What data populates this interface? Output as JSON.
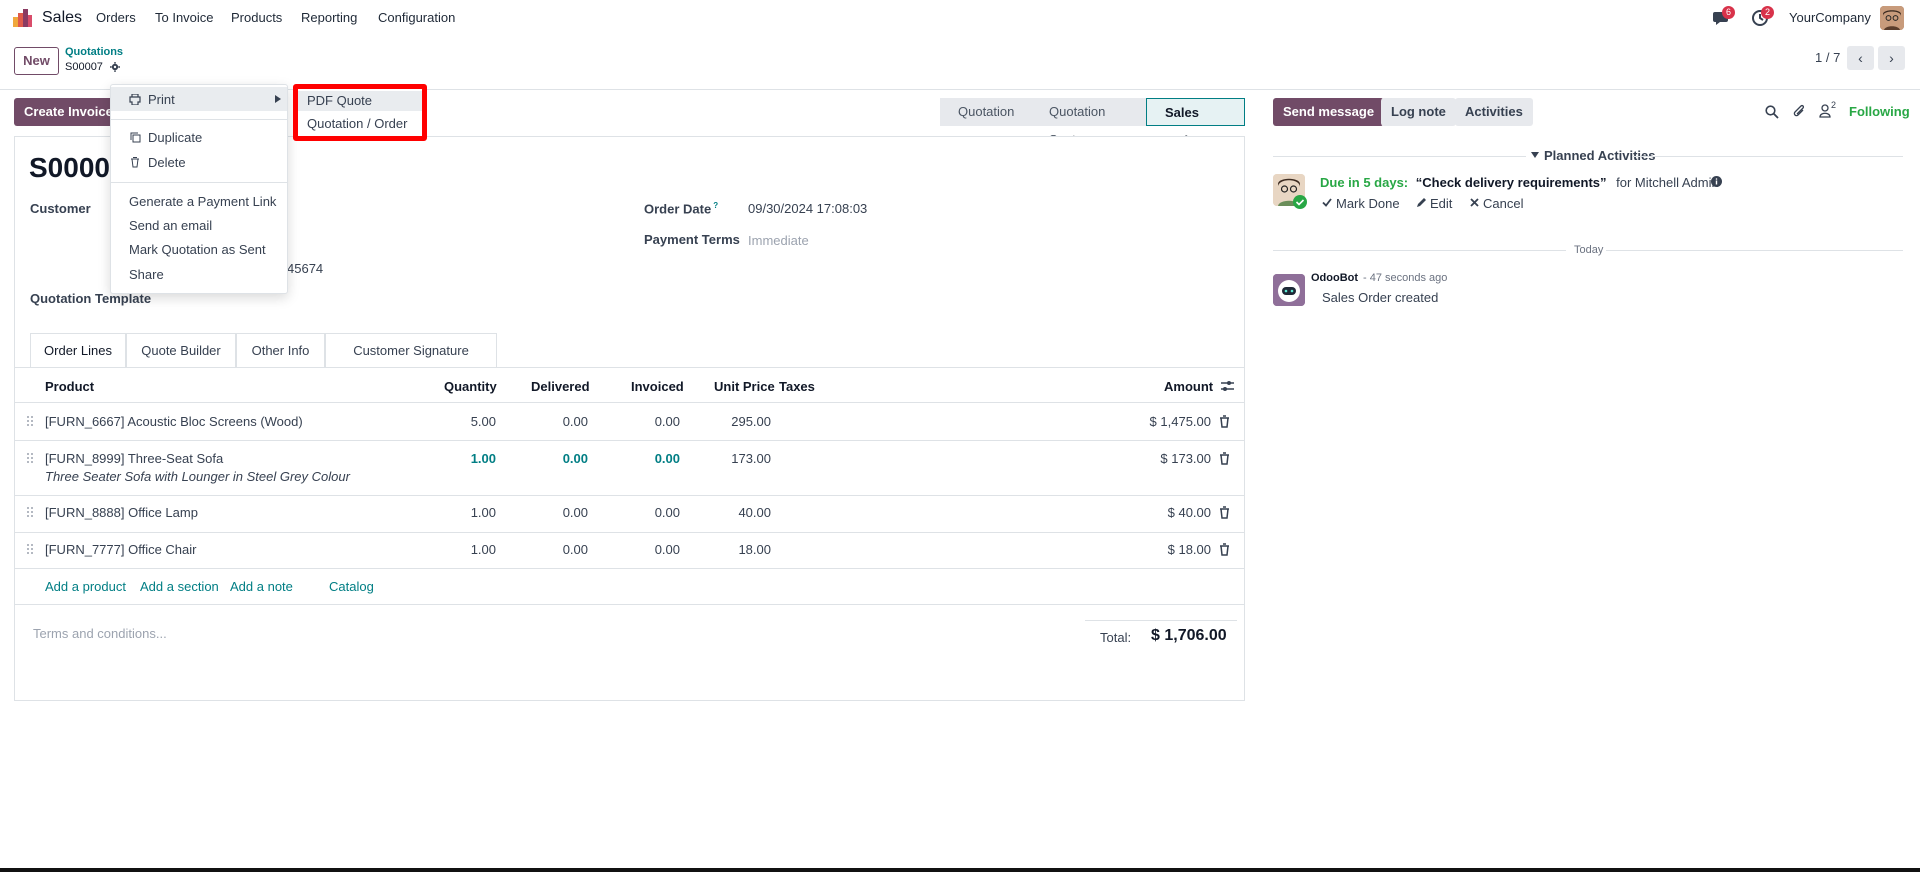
{
  "nav": {
    "app_name": "Sales",
    "menus": [
      "Orders",
      "To Invoice",
      "Products",
      "Reporting",
      "Configuration"
    ],
    "messages_badge": "6",
    "activities_badge": "2",
    "company": "YourCompany"
  },
  "control": {
    "new_label": "New",
    "breadcrumb_parent": "Quotations",
    "breadcrumb_current": "S00007",
    "pager": "1 / 7",
    "prev": "‹",
    "next": "›"
  },
  "actions": {
    "create_invoice": "Create Invoice",
    "statuses": [
      "Quotation",
      "Quotation Sent",
      "Sales Order"
    ],
    "active_status": "Sales Order"
  },
  "form": {
    "title": "S0000",
    "customer_label": "Customer",
    "customer_phone_fragment": "45674",
    "quotation_template_label": "Quotation Template",
    "order_date_label": "Order Date",
    "order_date_help": "?",
    "order_date_value": "09/30/2024 17:08:03",
    "payment_terms_label": "Payment Terms",
    "payment_terms_placeholder": "Immediate"
  },
  "tabs": [
    "Order Lines",
    "Quote Builder",
    "Other Info",
    "Customer Signature"
  ],
  "table": {
    "headers": {
      "product": "Product",
      "quantity": "Quantity",
      "delivered": "Delivered",
      "invoiced": "Invoiced",
      "unit_price": "Unit Price",
      "taxes": "Taxes",
      "amount": "Amount"
    },
    "rows": [
      {
        "product": "[FURN_6667] Acoustic Bloc Screens (Wood)",
        "description": "",
        "quantity": "5.00",
        "delivered": "0.00",
        "invoiced": "0.00",
        "unit_price": "295.00",
        "amount": "$ 1,475.00"
      },
      {
        "product": "[FURN_8999] Three-Seat Sofa",
        "description": "Three Seater Sofa with Lounger in Steel Grey Colour",
        "quantity": "1.00",
        "delivered": "0.00",
        "invoiced": "0.00",
        "unit_price": "173.00",
        "amount": "$ 173.00"
      },
      {
        "product": "[FURN_8888] Office Lamp",
        "description": "",
        "quantity": "1.00",
        "delivered": "0.00",
        "invoiced": "0.00",
        "unit_price": "40.00",
        "amount": "$ 40.00"
      },
      {
        "product": "[FURN_7777] Office Chair",
        "description": "",
        "quantity": "1.00",
        "delivered": "0.00",
        "invoiced": "0.00",
        "unit_price": "18.00",
        "amount": "$ 18.00"
      }
    ],
    "add_product": "Add a product",
    "add_section": "Add a section",
    "add_note": "Add a note",
    "catalog": "Catalog",
    "terms_placeholder": "Terms and conditions...",
    "total_label": "Total:",
    "total_value": "$ 1,706.00"
  },
  "gear_menu": {
    "print": "Print",
    "duplicate": "Duplicate",
    "delete": "Delete",
    "payment_link": "Generate a Payment Link",
    "send_email": "Send an email",
    "mark_sent": "Mark Quotation as Sent",
    "share": "Share"
  },
  "print_submenu": {
    "pdf_quote": "PDF Quote",
    "quotation_order": "Quotation / Order"
  },
  "chatter": {
    "send_message": "Send message",
    "log_note": "Log note",
    "activities": "Activities",
    "followers_count": "2",
    "following": "Following",
    "planned_activities": "Planned Activities",
    "due_label": "Due in 5 days:",
    "activity_title": "“Check delivery requirements”",
    "activity_for": "for Mitchell Admin",
    "mark_done": "Mark Done",
    "edit": "Edit",
    "cancel": "Cancel",
    "today": "Today",
    "author": "OdooBot",
    "time": "- 47 seconds ago",
    "message": "Sales Order created"
  },
  "colors": {
    "brand": "#714b67",
    "link": "#017e84",
    "success": "#28a745",
    "highlight": "#ff0000"
  }
}
